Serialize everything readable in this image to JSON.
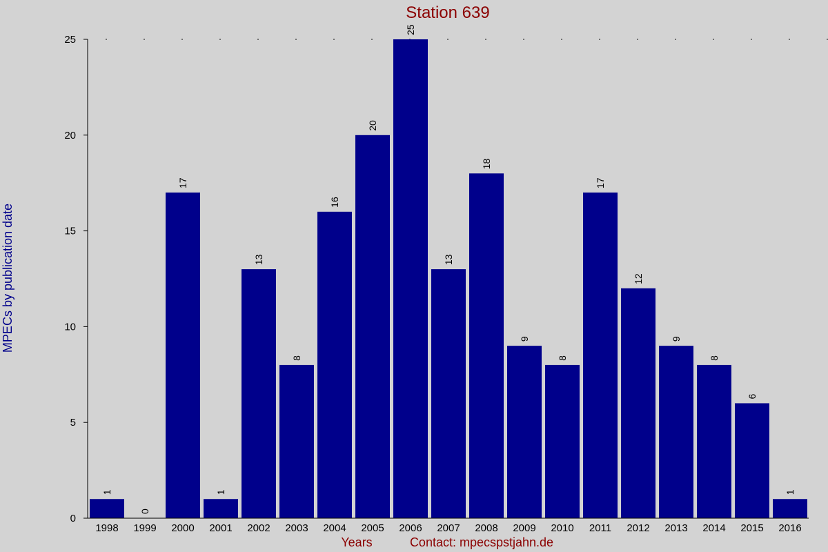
{
  "chart_data": {
    "type": "bar",
    "title": "Station 639",
    "xlabel": "Years",
    "ylabel": "MPECs by publication date",
    "footer": "Contact: mpecspstjahn.de",
    "categories": [
      "1998",
      "1999",
      "2000",
      "2001",
      "2002",
      "2003",
      "2004",
      "2005",
      "2006",
      "2007",
      "2008",
      "2009",
      "2010",
      "2011",
      "2012",
      "2013",
      "2014",
      "2015",
      "2016"
    ],
    "values": [
      1,
      0,
      17,
      1,
      13,
      8,
      16,
      20,
      25,
      13,
      18,
      9,
      8,
      17,
      12,
      9,
      8,
      6,
      1
    ],
    "ylim": [
      0,
      25
    ],
    "yticks": [
      0,
      5,
      10,
      15,
      20,
      25
    ],
    "bar_color": "#00008b",
    "background_color": "#d3d3d3",
    "title_color": "#8b0000",
    "ylabel_color": "#00008b",
    "grid": false
  }
}
